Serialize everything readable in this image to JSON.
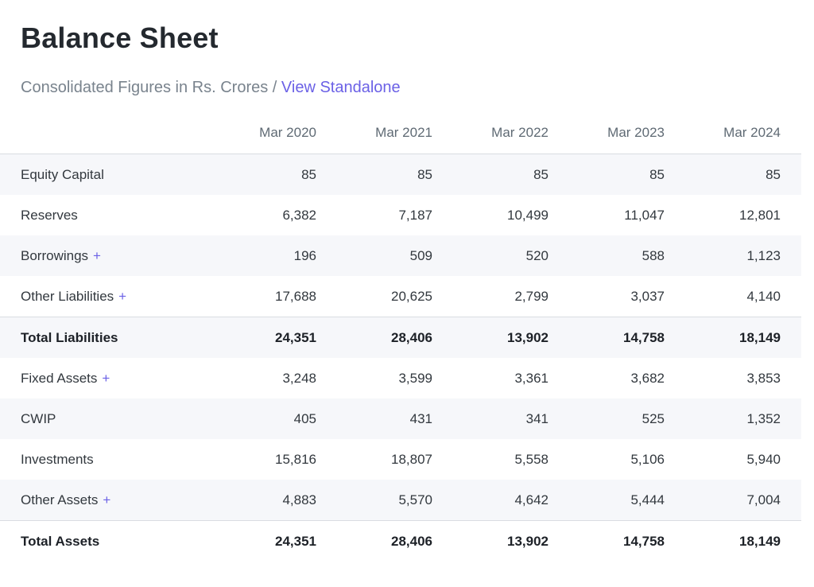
{
  "header": {
    "title": "Balance Sheet",
    "subtitle": "Consolidated Figures in Rs. Crores",
    "separator": " / ",
    "link_label": "View Standalone"
  },
  "colors": {
    "accent_link": "#6b61e6",
    "expand_plus": "#6b61e6",
    "row_stripe": "#f6f7fa",
    "table_border": "#d9dce1",
    "title_text": "#24292f",
    "muted_text": "#79838d",
    "header_text": "#5f6a74",
    "body_text": "#32383e",
    "total_text": "#1d2127"
  },
  "table": {
    "expand_symbol": "+",
    "columns": [
      "Mar 2020",
      "Mar 2021",
      "Mar 2022",
      "Mar 2023",
      "Mar 2024"
    ],
    "rows": [
      {
        "label": "Equity Capital",
        "expandable": false,
        "total": false,
        "values": [
          "85",
          "85",
          "85",
          "85",
          "85"
        ]
      },
      {
        "label": "Reserves",
        "expandable": false,
        "total": false,
        "values": [
          "6,382",
          "7,187",
          "10,499",
          "11,047",
          "12,801"
        ]
      },
      {
        "label": "Borrowings",
        "expandable": true,
        "total": false,
        "values": [
          "196",
          "509",
          "520",
          "588",
          "1,123"
        ]
      },
      {
        "label": "Other Liabilities",
        "expandable": true,
        "total": false,
        "values": [
          "17,688",
          "20,625",
          "2,799",
          "3,037",
          "4,140"
        ]
      },
      {
        "label": "Total Liabilities",
        "expandable": false,
        "total": true,
        "values": [
          "24,351",
          "28,406",
          "13,902",
          "14,758",
          "18,149"
        ]
      },
      {
        "label": "Fixed Assets",
        "expandable": true,
        "total": false,
        "values": [
          "3,248",
          "3,599",
          "3,361",
          "3,682",
          "3,853"
        ]
      },
      {
        "label": "CWIP",
        "expandable": false,
        "total": false,
        "values": [
          "405",
          "431",
          "341",
          "525",
          "1,352"
        ]
      },
      {
        "label": "Investments",
        "expandable": false,
        "total": false,
        "values": [
          "15,816",
          "18,807",
          "5,558",
          "5,106",
          "5,940"
        ]
      },
      {
        "label": "Other Assets",
        "expandable": true,
        "total": false,
        "values": [
          "4,883",
          "5,570",
          "4,642",
          "5,444",
          "7,004"
        ]
      },
      {
        "label": "Total Assets",
        "expandable": false,
        "total": true,
        "values": [
          "24,351",
          "28,406",
          "13,902",
          "14,758",
          "18,149"
        ]
      }
    ]
  },
  "chart_data": {
    "type": "table",
    "title": "Balance Sheet",
    "subtitle": "Consolidated Figures in Rs. Crores",
    "categories": [
      "Mar 2020",
      "Mar 2021",
      "Mar 2022",
      "Mar 2023",
      "Mar 2024"
    ],
    "series": [
      {
        "name": "Equity Capital",
        "values": [
          85,
          85,
          85,
          85,
          85
        ]
      },
      {
        "name": "Reserves",
        "values": [
          6382,
          7187,
          10499,
          11047,
          12801
        ]
      },
      {
        "name": "Borrowings",
        "values": [
          196,
          509,
          520,
          588,
          1123
        ]
      },
      {
        "name": "Other Liabilities",
        "values": [
          17688,
          20625,
          2799,
          3037,
          4140
        ]
      },
      {
        "name": "Total Liabilities",
        "values": [
          24351,
          28406,
          13902,
          14758,
          18149
        ]
      },
      {
        "name": "Fixed Assets",
        "values": [
          3248,
          3599,
          3361,
          3682,
          3853
        ]
      },
      {
        "name": "CWIP",
        "values": [
          405,
          431,
          341,
          525,
          1352
        ]
      },
      {
        "name": "Investments",
        "values": [
          15816,
          18807,
          5558,
          5106,
          5940
        ]
      },
      {
        "name": "Other Assets",
        "values": [
          4883,
          5570,
          4642,
          5444,
          7004
        ]
      },
      {
        "name": "Total Assets",
        "values": [
          24351,
          28406,
          13902,
          14758,
          18149
        ]
      }
    ]
  }
}
